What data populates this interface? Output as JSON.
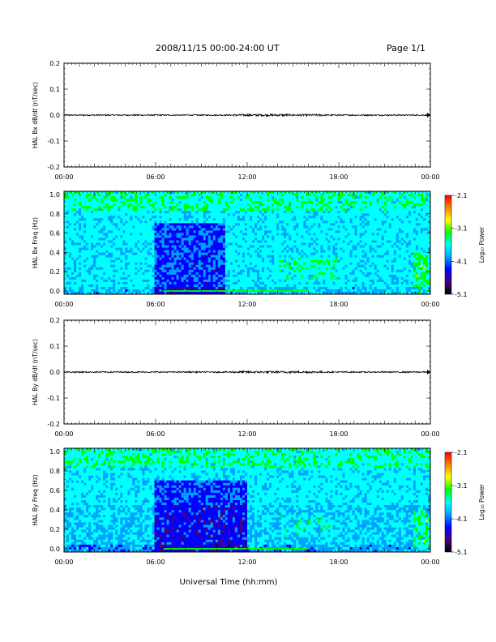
{
  "header": {
    "title": "2008/11/15  00:00-24:00 UT",
    "page": "Page 1/1"
  },
  "xaxis": {
    "label": "Universal Time (hh:mm)",
    "range_hours": [
      0,
      24
    ],
    "ticks": [
      "00:00",
      "06:00",
      "12:00",
      "18:00",
      "00:00"
    ]
  },
  "colorbar": {
    "label": "Log₁₀ Power",
    "ticks": [
      "-2.1",
      "-3.1",
      "-4.1",
      "-5.1"
    ],
    "range": [
      -5.1,
      -2.1
    ],
    "colors": [
      "#000000",
      "#4b0082",
      "#0000ff",
      "#00a0ff",
      "#00ffff",
      "#00ff00",
      "#ffff00",
      "#ff8000",
      "#ff0000"
    ]
  },
  "chart_data": [
    {
      "type": "line",
      "ylabel": "HAL Bx dB/dt (nT/sec)",
      "ylim": [
        -0.2,
        0.2
      ],
      "yticks": [
        "0.2",
        "0.1",
        "0.0",
        "-0.1",
        "-0.2"
      ],
      "series": [
        {
          "x": [
            0,
            3,
            6,
            9,
            12,
            15,
            18,
            21,
            24
          ],
          "y": [
            0,
            0,
            0,
            0,
            0,
            0,
            0,
            0,
            0
          ]
        }
      ]
    },
    {
      "type": "heatmap",
      "ylabel": "HAL Bx Freq (Hz)",
      "ylim": [
        0,
        1.0
      ],
      "yticks": [
        "1.0",
        "0.8",
        "0.6",
        "0.4",
        "0.2",
        "0.0"
      ],
      "dominant_color": "#00a0ff",
      "quiet_region_hours": [
        6,
        10.5
      ],
      "low_band_color": "#00ff00"
    },
    {
      "type": "line",
      "ylabel": "HAL By dB/dt (nT/sec)",
      "ylim": [
        -0.2,
        0.2
      ],
      "yticks": [
        "0.2",
        "0.1",
        "0.0",
        "-0.1",
        "-0.2"
      ],
      "series": [
        {
          "x": [
            0,
            3,
            6,
            9,
            12,
            15,
            18,
            21,
            24
          ],
          "y": [
            0,
            0,
            0,
            0,
            0,
            0,
            0,
            0,
            0
          ]
        }
      ]
    },
    {
      "type": "heatmap",
      "ylabel": "HAL By Freq (Hz)",
      "ylim": [
        0,
        1.0
      ],
      "yticks": [
        "1.0",
        "0.8",
        "0.6",
        "0.4",
        "0.2",
        "0.0"
      ],
      "dominant_color": "#0040ff",
      "quiet_region_hours": [
        6,
        12
      ],
      "low_band_color": "#00ff00"
    }
  ]
}
